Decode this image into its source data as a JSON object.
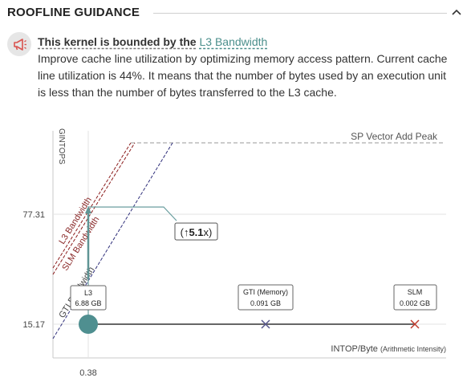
{
  "header": {
    "title": "ROOFLINE GUIDANCE",
    "toggle_icon": "chevron-up-icon"
  },
  "message": {
    "icon": "megaphone-icon",
    "title_prefix": "This kernel is bounded by the",
    "title_link": "L3 Bandwidth",
    "body": "Improve cache line utilization by optimizing memory access pattern. Current cache line utilization is 44%. It means that the number of bytes used by an execution unit is less than the number of bytes transferred to the L3 cache."
  },
  "chart_data": {
    "type": "roofline",
    "ylabel": "GINTOPS",
    "xlabel": "INTOP/Byte",
    "xlabel_note": "(Arithmetic Intensity)",
    "y_ticks": [
      "77.31",
      "15.17"
    ],
    "x_ticks": [
      "0.38"
    ],
    "roofs": [
      {
        "name": "SP Vector Add Peak",
        "kind": "compute",
        "style": "dashed",
        "color": "#999999"
      },
      {
        "name": "L3 Bandwidth",
        "kind": "memory",
        "style": "dashed",
        "color": "#8b1c1c"
      },
      {
        "name": "SLM Bandwidth",
        "kind": "memory",
        "style": "dashed",
        "color": "#8b1c1c"
      },
      {
        "name": "GTI Bandwidth",
        "kind": "memory",
        "style": "dashed",
        "color": "#2e2e7a"
      }
    ],
    "kernel": {
      "performance": 15.17,
      "arithmetic_intensity": 0.38
    },
    "speedup": {
      "prefix": "(↑",
      "value": "5.1",
      "suffix": "x)"
    },
    "points": [
      {
        "name": "L3",
        "value": "6.88 GB",
        "marker": "circle",
        "color": "#4f8f90"
      },
      {
        "name": "GTI (Memory)",
        "value": "0.091 GB",
        "marker": "x",
        "color": "#55558a"
      },
      {
        "name": "SLM",
        "value": "0.002 GB",
        "marker": "x",
        "color": "#c0392b"
      }
    ]
  }
}
